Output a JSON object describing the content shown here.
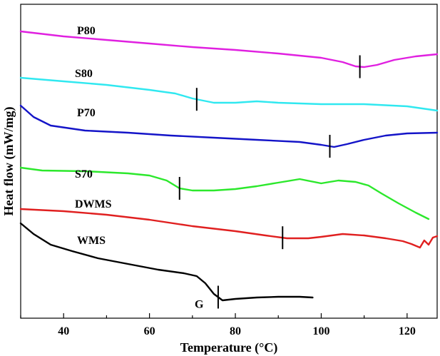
{
  "chart_data": {
    "type": "line",
    "xlabel": "Temperature (°C)",
    "ylabel": "Heat flow (mW/mg)",
    "xlim": [
      30,
      127
    ],
    "yticks_shown": false,
    "xticks": [
      40,
      60,
      80,
      100,
      120
    ],
    "series": [
      {
        "name": "P80",
        "color": "#e020e0",
        "points": [
          [
            30,
            38
          ],
          [
            40,
            45
          ],
          [
            50,
            50
          ],
          [
            60,
            55
          ],
          [
            70,
            60
          ],
          [
            80,
            64
          ],
          [
            90,
            69
          ],
          [
            100,
            75
          ],
          [
            105,
            81
          ],
          [
            108,
            87
          ],
          [
            110,
            88
          ],
          [
            113,
            85
          ],
          [
            117,
            78
          ],
          [
            122,
            73
          ],
          [
            127,
            70
          ]
        ],
        "marker_x": 109
      },
      {
        "name": "S80",
        "color": "#30e8f0",
        "points": [
          [
            30,
            103
          ],
          [
            40,
            108
          ],
          [
            50,
            113
          ],
          [
            60,
            120
          ],
          [
            66,
            125
          ],
          [
            70,
            132
          ],
          [
            75,
            138
          ],
          [
            80,
            138
          ],
          [
            85,
            136
          ],
          [
            90,
            138
          ],
          [
            100,
            140
          ],
          [
            110,
            140
          ],
          [
            120,
            143
          ],
          [
            127,
            149
          ]
        ],
        "marker_x": 71
      },
      {
        "name": "P70",
        "color": "#1414c8",
        "points": [
          [
            30,
            142
          ],
          [
            33,
            158
          ],
          [
            37,
            170
          ],
          [
            45,
            177
          ],
          [
            55,
            180
          ],
          [
            65,
            184
          ],
          [
            75,
            187
          ],
          [
            85,
            190
          ],
          [
            95,
            193
          ],
          [
            100,
            197
          ],
          [
            103,
            200
          ],
          [
            106,
            196
          ],
          [
            110,
            190
          ],
          [
            115,
            184
          ],
          [
            120,
            181
          ],
          [
            127,
            180
          ]
        ],
        "marker_x": 102
      },
      {
        "name": "S70",
        "color": "#2ce82c",
        "points": [
          [
            30,
            229
          ],
          [
            35,
            233
          ],
          [
            45,
            234
          ],
          [
            55,
            237
          ],
          [
            60,
            240
          ],
          [
            64,
            247
          ],
          [
            67,
            258
          ],
          [
            70,
            261
          ],
          [
            75,
            261
          ],
          [
            80,
            259
          ],
          [
            85,
            255
          ],
          [
            90,
            250
          ],
          [
            95,
            245
          ],
          [
            100,
            251
          ],
          [
            104,
            247
          ],
          [
            108,
            249
          ],
          [
            111,
            254
          ],
          [
            114,
            265
          ],
          [
            118,
            279
          ],
          [
            122,
            292
          ],
          [
            125,
            301
          ]
        ],
        "marker_x": 67
      },
      {
        "name": "DWMS",
        "color": "#e02020",
        "points": [
          [
            30,
            287
          ],
          [
            40,
            290
          ],
          [
            50,
            295
          ],
          [
            60,
            302
          ],
          [
            70,
            311
          ],
          [
            80,
            318
          ],
          [
            87,
            324
          ],
          [
            92,
            328
          ],
          [
            97,
            328
          ],
          [
            100,
            326
          ],
          [
            105,
            322
          ],
          [
            110,
            324
          ],
          [
            115,
            328
          ],
          [
            119,
            332
          ],
          [
            121,
            336
          ],
          [
            123,
            341
          ],
          [
            124,
            331
          ],
          [
            125,
            337
          ],
          [
            126,
            327
          ],
          [
            127,
            325
          ]
        ],
        "marker_x": 91
      },
      {
        "name": "WMS",
        "color": "#000000",
        "points": [
          [
            30,
            307
          ],
          [
            33,
            322
          ],
          [
            37,
            337
          ],
          [
            42,
            346
          ],
          [
            48,
            356
          ],
          [
            55,
            364
          ],
          [
            62,
            372
          ],
          [
            68,
            377
          ],
          [
            71,
            381
          ],
          [
            73,
            391
          ],
          [
            75,
            406
          ],
          [
            77,
            415
          ],
          [
            80,
            413
          ],
          [
            85,
            411
          ],
          [
            90,
            410
          ],
          [
            95,
            410
          ],
          [
            98,
            411
          ]
        ],
        "marker_x": 76,
        "point_label": "G"
      }
    ]
  }
}
